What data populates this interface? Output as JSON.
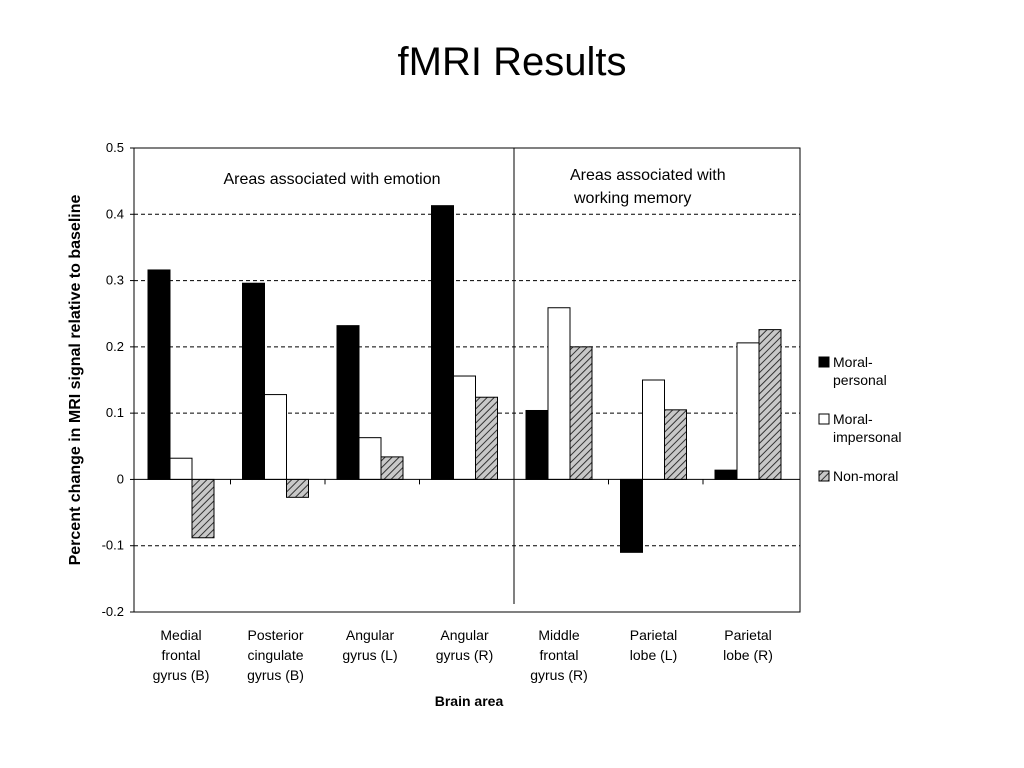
{
  "slide": {
    "title": "fMRI Results"
  },
  "chart_data": {
    "type": "bar",
    "title": "",
    "xlabel": "Brain area",
    "ylabel": "Percent change in MRI signal relative to baseline",
    "ylim": [
      -0.2,
      0.5
    ],
    "yticks": [
      {
        "v": 0.5,
        "t": "0.5"
      },
      {
        "v": 0.4,
        "t": "0.4"
      },
      {
        "v": 0.3,
        "t": "0.3"
      },
      {
        "v": 0.2,
        "t": "0.2"
      },
      {
        "v": 0.1,
        "t": "0.1"
      },
      {
        "v": 0,
        "t": "0"
      },
      {
        "v": -0.1,
        "t": "-0.1"
      },
      {
        "v": -0.2,
        "t": "-0.2"
      }
    ],
    "grid": "dashed horizontal",
    "legend_position": "right",
    "categories": [
      [
        "Medial",
        "frontal",
        "gyrus (B)"
      ],
      [
        "Posterior",
        "cingulate",
        "gyrus (B)"
      ],
      [
        "Angular",
        "gyrus (L)"
      ],
      [
        "Angular",
        "gyrus (R)"
      ],
      [
        "Middle",
        "frontal",
        "gyrus (R)"
      ],
      [
        "Parietal",
        "lobe (L)"
      ],
      [
        "Parietal",
        "lobe (R)"
      ]
    ],
    "series": [
      {
        "name": [
          "Moral-",
          "personal"
        ],
        "fill": "solid-black",
        "values": [
          0.316,
          0.296,
          0.232,
          0.413,
          0.104,
          -0.11,
          0.014
        ]
      },
      {
        "name": [
          "Moral-",
          "impersonal"
        ],
        "fill": "white",
        "values": [
          0.032,
          0.128,
          0.063,
          0.156,
          0.259,
          0.15,
          0.206
        ]
      },
      {
        "name": [
          "Non-moral"
        ],
        "fill": "hatched-gray",
        "values": [
          -0.088,
          -0.027,
          0.034,
          0.124,
          0.2,
          0.105,
          0.226
        ]
      }
    ],
    "regions": [
      {
        "label": [
          "Areas associated with emotion"
        ],
        "categories": [
          0,
          1,
          2,
          3
        ]
      },
      {
        "label": [
          "Areas associated with",
          "working memory"
        ],
        "categories": [
          4,
          5,
          6
        ]
      }
    ]
  }
}
